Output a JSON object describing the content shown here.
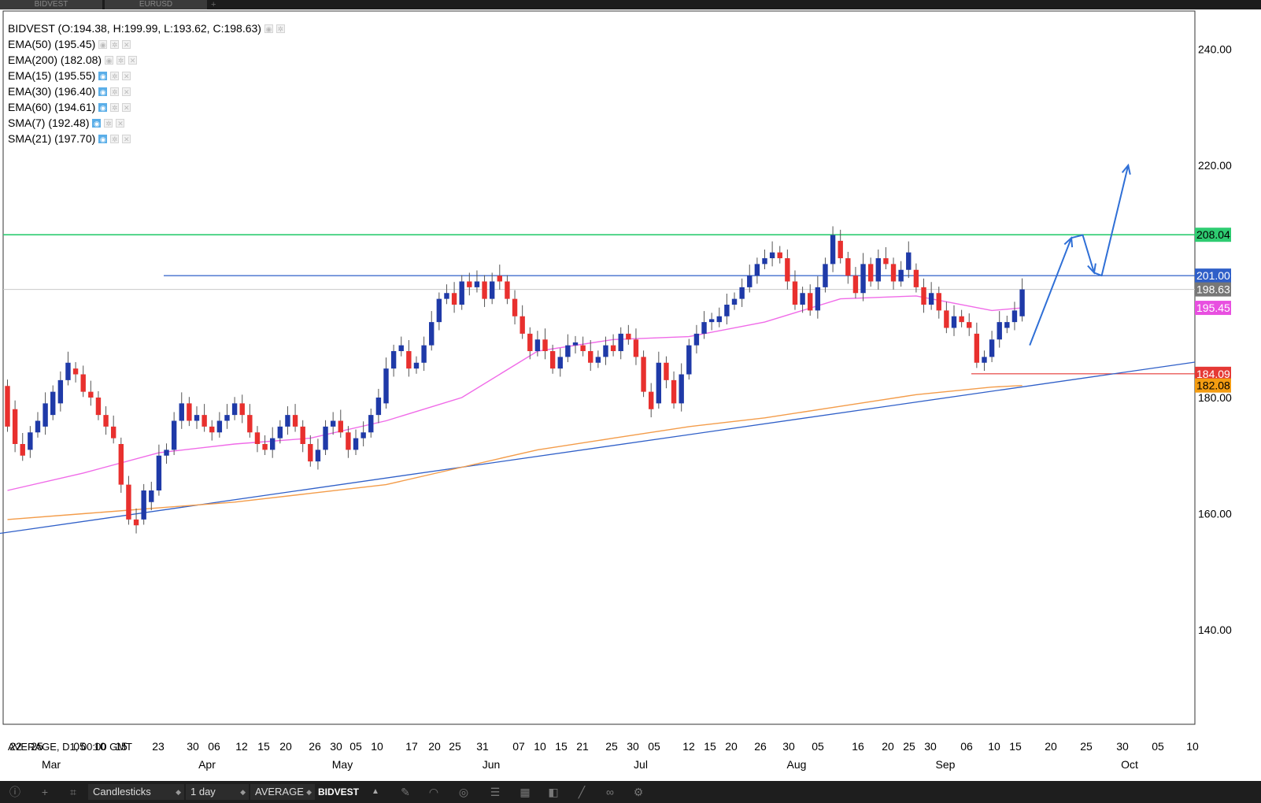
{
  "tabs": [
    "BIDVEST",
    "EURUSD"
  ],
  "legend": {
    "title": "BIDVEST (O:194.38, H:199.99, L:193.62, C:198.63)",
    "indicators": [
      {
        "label": "EMA(50) (195.45)",
        "eye": false
      },
      {
        "label": "EMA(200) (182.08)",
        "eye": false
      },
      {
        "label": "EMA(15) (195.55)",
        "eye": true
      },
      {
        "label": "EMA(30) (196.40)",
        "eye": true
      },
      {
        "label": "EMA(60) (194.61)",
        "eye": true
      },
      {
        "label": "SMA(7) (192.48)",
        "eye": true
      },
      {
        "label": "SMA(21) (197.70)",
        "eye": true
      }
    ]
  },
  "footer_label": "AVERAGE, D1, 00:00 GMT",
  "toolbar": {
    "chart_type": "Candlesticks",
    "period": "1 day",
    "average": "AVERAGE",
    "instrument": "BIDVEST",
    "icons": [
      "info-icon",
      "crosshair-icon",
      "crop-icon",
      "pencil-icon",
      "magnet-icon",
      "eye-off-icon",
      "indicators-icon",
      "layout-icon",
      "objects-icon",
      "line-icon",
      "link-icon",
      "settings-icon"
    ]
  },
  "chart_data": {
    "type": "candlestick",
    "instrument": "BIDVEST",
    "ylim": [
      120,
      242
    ],
    "y_ticks": [
      "240.00",
      "220.00",
      "180.00",
      "160.00",
      "140.00"
    ],
    "price_labels": [
      {
        "text": "208.04",
        "value": 208.04,
        "color": "#2ecc71",
        "text_color": "#000000"
      },
      {
        "text": "201.00",
        "value": 201.0,
        "color": "#2f5fc8",
        "text_color": "#ffffff"
      },
      {
        "text": "198.63",
        "value": 198.63,
        "color": "#777777",
        "text_color": "#ffffff"
      },
      {
        "text": "195.45",
        "value": 195.45,
        "color": "#e84fe0",
        "text_color": "#ffffff"
      },
      {
        "text": "184.09",
        "value": 184.09,
        "color": "#e53935",
        "text_color": "#ffffff"
      },
      {
        "text": "182.08",
        "value": 182.08,
        "color": "#f39c12",
        "text_color": "#000000"
      }
    ],
    "x_ticks": [
      "22",
      "25",
      "05",
      "10",
      "15",
      "23",
      "30",
      "06",
      "12",
      "15",
      "20",
      "26",
      "30",
      "05",
      "10",
      "17",
      "20",
      "25",
      "31",
      "07",
      "10",
      "15",
      "21",
      "25",
      "30",
      "05",
      "12",
      "15",
      "20",
      "26",
      "30",
      "05",
      "16",
      "20",
      "25",
      "30",
      "06",
      "10",
      "15",
      "20",
      "25",
      "30",
      "05",
      "10"
    ],
    "x_months": [
      "Mar",
      "Apr",
      "May",
      "Jun",
      "Jul",
      "Aug",
      "Sep",
      "Oct"
    ],
    "candles": [
      [
        182,
        175
      ],
      [
        178,
        172
      ],
      [
        172,
        170
      ],
      [
        171,
        174
      ],
      [
        174,
        176
      ],
      [
        175,
        179
      ],
      [
        177,
        181
      ],
      [
        179,
        183
      ],
      [
        183,
        186
      ],
      [
        185,
        184
      ],
      [
        184,
        181
      ],
      [
        181,
        180
      ],
      [
        180,
        177
      ],
      [
        177,
        175
      ],
      [
        175,
        173
      ],
      [
        172,
        165
      ],
      [
        165,
        159
      ],
      [
        159,
        158
      ],
      [
        159,
        164
      ],
      [
        162,
        164
      ],
      [
        164,
        170
      ],
      [
        170,
        171
      ],
      [
        171,
        176
      ],
      [
        176,
        179
      ],
      [
        179,
        176
      ],
      [
        176,
        177
      ],
      [
        177,
        175
      ],
      [
        175,
        174
      ],
      [
        174,
        176
      ],
      [
        176,
        177
      ],
      [
        177,
        179
      ],
      [
        179,
        177
      ],
      [
        177,
        174
      ],
      [
        174,
        172
      ],
      [
        172,
        171
      ],
      [
        171,
        173
      ],
      [
        173,
        175
      ],
      [
        175,
        177
      ],
      [
        177,
        175
      ],
      [
        175,
        172
      ],
      [
        172,
        169
      ],
      [
        169,
        171
      ],
      [
        171,
        175
      ],
      [
        175,
        176
      ],
      [
        176,
        174
      ],
      [
        174,
        171
      ],
      [
        171,
        173
      ],
      [
        173,
        174
      ],
      [
        174,
        177
      ],
      [
        177,
        180
      ],
      [
        179,
        185
      ],
      [
        185,
        188
      ],
      [
        188,
        189
      ],
      [
        188,
        185
      ],
      [
        185,
        186
      ],
      [
        186,
        189
      ],
      [
        189,
        193
      ],
      [
        193,
        197
      ],
      [
        197,
        198
      ],
      [
        198,
        196
      ],
      [
        196,
        200
      ],
      [
        200,
        199
      ],
      [
        199,
        200
      ],
      [
        200,
        197
      ],
      [
        197,
        200
      ],
      [
        201,
        200
      ],
      [
        200,
        197
      ],
      [
        197,
        194
      ],
      [
        194,
        191
      ],
      [
        191,
        188
      ],
      [
        188,
        190
      ],
      [
        190,
        188
      ],
      [
        188,
        185
      ],
      [
        185,
        187
      ],
      [
        187,
        189
      ],
      [
        189,
        189.5
      ],
      [
        189,
        188
      ],
      [
        188,
        186
      ],
      [
        186,
        187
      ],
      [
        187,
        189
      ],
      [
        189,
        188
      ],
      [
        188,
        191
      ],
      [
        191,
        190
      ],
      [
        190,
        187
      ],
      [
        187,
        181
      ],
      [
        181,
        178
      ],
      [
        179,
        186
      ],
      [
        186,
        183
      ],
      [
        183,
        179
      ],
      [
        179,
        184
      ],
      [
        184,
        189
      ],
      [
        189,
        191
      ],
      [
        191,
        193
      ],
      [
        193,
        193.5
      ],
      [
        193,
        194
      ],
      [
        194,
        196
      ],
      [
        196,
        197
      ],
      [
        197,
        199
      ],
      [
        199,
        201
      ],
      [
        201,
        203
      ],
      [
        203,
        204
      ],
      [
        204,
        205
      ],
      [
        205,
        204
      ],
      [
        204,
        200
      ],
      [
        200,
        196
      ],
      [
        196,
        198
      ],
      [
        198,
        195
      ],
      [
        195,
        199
      ],
      [
        199,
        203
      ],
      [
        203,
        208
      ],
      [
        207,
        204
      ],
      [
        204,
        201
      ],
      [
        201,
        198
      ],
      [
        198,
        203
      ],
      [
        203,
        200
      ],
      [
        200,
        204
      ],
      [
        204,
        203
      ],
      [
        203,
        200
      ],
      [
        200,
        202
      ],
      [
        202,
        205
      ],
      [
        202,
        199
      ],
      [
        199,
        196
      ],
      [
        196,
        198
      ],
      [
        198,
        195
      ],
      [
        195,
        192
      ],
      [
        192,
        194
      ],
      [
        194,
        193
      ],
      [
        193,
        192
      ],
      [
        191,
        186
      ],
      [
        186,
        187
      ],
      [
        187,
        190
      ],
      [
        190,
        193
      ],
      [
        192,
        193
      ],
      [
        193,
        195
      ],
      [
        194,
        198.63
      ]
    ],
    "ema50": [
      [
        0,
        164
      ],
      [
        10,
        167
      ],
      [
        20,
        170.5
      ],
      [
        30,
        172
      ],
      [
        40,
        173
      ],
      [
        50,
        176
      ],
      [
        60,
        180
      ],
      [
        70,
        188
      ],
      [
        80,
        190
      ],
      [
        90,
        190.5
      ],
      [
        100,
        193
      ],
      [
        110,
        197
      ],
      [
        120,
        197.5
      ],
      [
        130,
        195
      ],
      [
        134,
        195.45
      ]
    ],
    "ema200": [
      [
        0,
        159
      ],
      [
        10,
        160
      ],
      [
        20,
        161
      ],
      [
        30,
        162
      ],
      [
        40,
        163.5
      ],
      [
        50,
        165
      ],
      [
        60,
        168
      ],
      [
        70,
        171
      ],
      [
        80,
        173
      ],
      [
        90,
        175
      ],
      [
        100,
        176.5
      ],
      [
        110,
        178.5
      ],
      [
        120,
        180.5
      ],
      [
        130,
        181.8
      ],
      [
        134,
        182.08
      ]
    ],
    "annotations": {
      "green_line": 208.04,
      "blue_line": 201.0,
      "gray_line": 198.63,
      "red_line": 184.09,
      "trendline": [
        [
          -8,
          155.3
        ],
        [
          134,
          186.1
        ]
      ],
      "projection": [
        [
          135,
          189
        ],
        [
          140.5,
          207.5
        ],
        [
          142,
          208
        ],
        [
          143.5,
          201.5
        ],
        [
          144.5,
          201
        ],
        [
          148,
          220
        ]
      ]
    }
  }
}
